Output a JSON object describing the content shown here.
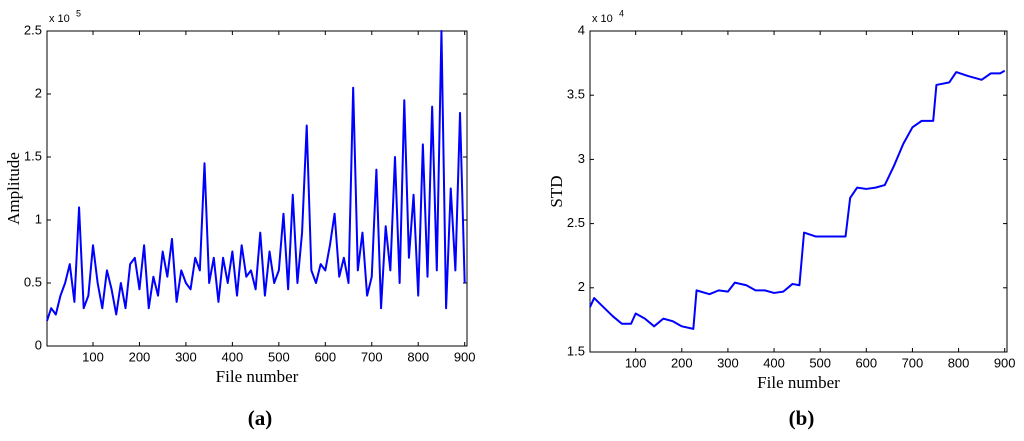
{
  "chart_data": [
    {
      "type": "line",
      "caption": "(a)",
      "xlabel": "File number",
      "ylabel": "Amplitude",
      "multiplier_base": "x 10",
      "multiplier_exponent": "5",
      "xlim": [
        1,
        905
      ],
      "xticks": [
        100,
        200,
        300,
        400,
        500,
        600,
        700,
        800,
        900
      ],
      "ylim": [
        0,
        2.5
      ],
      "yticks": [
        0,
        0.5,
        1,
        1.5,
        2,
        2.5
      ],
      "x": [
        1,
        10,
        20,
        30,
        40,
        50,
        60,
        70,
        80,
        90,
        100,
        110,
        120,
        130,
        140,
        150,
        160,
        170,
        180,
        190,
        200,
        210,
        220,
        230,
        240,
        250,
        260,
        270,
        280,
        290,
        300,
        310,
        320,
        330,
        340,
        350,
        360,
        370,
        380,
        390,
        400,
        410,
        420,
        430,
        440,
        450,
        460,
        470,
        480,
        490,
        500,
        510,
        520,
        530,
        540,
        550,
        560,
        570,
        580,
        590,
        600,
        610,
        620,
        630,
        640,
        650,
        660,
        670,
        680,
        690,
        700,
        710,
        720,
        730,
        740,
        750,
        760,
        770,
        780,
        790,
        800,
        810,
        820,
        830,
        840,
        850,
        860,
        870,
        880,
        890,
        900
      ],
      "series": [
        {
          "color": "#0000ff",
          "values": [
            0.2,
            0.3,
            0.25,
            0.4,
            0.5,
            0.65,
            0.35,
            1.1,
            0.3,
            0.4,
            0.8,
            0.5,
            0.3,
            0.6,
            0.45,
            0.25,
            0.5,
            0.3,
            0.65,
            0.7,
            0.45,
            0.8,
            0.3,
            0.55,
            0.4,
            0.75,
            0.55,
            0.85,
            0.35,
            0.6,
            0.5,
            0.45,
            0.7,
            0.6,
            1.45,
            0.5,
            0.7,
            0.35,
            0.7,
            0.5,
            0.75,
            0.4,
            0.8,
            0.55,
            0.6,
            0.45,
            0.9,
            0.4,
            0.75,
            0.5,
            0.6,
            1.05,
            0.45,
            1.2,
            0.5,
            0.9,
            1.75,
            0.6,
            0.5,
            0.65,
            0.6,
            0.8,
            1.05,
            0.55,
            0.7,
            0.5,
            2.05,
            0.6,
            0.9,
            0.4,
            0.55,
            1.4,
            0.3,
            0.95,
            0.6,
            1.5,
            0.5,
            1.95,
            0.7,
            1.2,
            0.4,
            1.6,
            0.55,
            1.9,
            0.6,
            2.5,
            0.3,
            1.25,
            0.6,
            1.85,
            0.5
          ]
        }
      ]
    },
    {
      "type": "line",
      "caption": "(b)",
      "xlabel": "File number",
      "ylabel": "STD",
      "multiplier_base": "x 10",
      "multiplier_exponent": "4",
      "xlim": [
        1,
        905
      ],
      "xticks": [
        100,
        200,
        300,
        400,
        500,
        600,
        700,
        800,
        900
      ],
      "ylim": [
        1.5,
        4
      ],
      "yticks": [
        1.5,
        2,
        2.5,
        3,
        3.5,
        4
      ],
      "x": [
        1,
        10,
        30,
        50,
        70,
        90,
        100,
        120,
        140,
        160,
        180,
        200,
        225,
        232,
        260,
        280,
        300,
        315,
        340,
        360,
        380,
        400,
        420,
        440,
        455,
        465,
        490,
        520,
        555,
        565,
        580,
        600,
        620,
        640,
        660,
        680,
        700,
        720,
        745,
        752,
        780,
        795,
        820,
        850,
        870,
        890,
        900
      ],
      "series": [
        {
          "color": "#0000ff",
          "values": [
            1.85,
            1.92,
            1.85,
            1.78,
            1.72,
            1.72,
            1.8,
            1.76,
            1.7,
            1.76,
            1.74,
            1.7,
            1.68,
            1.98,
            1.95,
            1.98,
            1.97,
            2.04,
            2.02,
            1.98,
            1.98,
            1.96,
            1.97,
            2.03,
            2.02,
            2.43,
            2.4,
            2.4,
            2.4,
            2.7,
            2.78,
            2.77,
            2.78,
            2.8,
            2.95,
            3.12,
            3.25,
            3.3,
            3.3,
            3.58,
            3.6,
            3.68,
            3.65,
            3.62,
            3.67,
            3.67,
            3.69
          ]
        }
      ]
    }
  ]
}
